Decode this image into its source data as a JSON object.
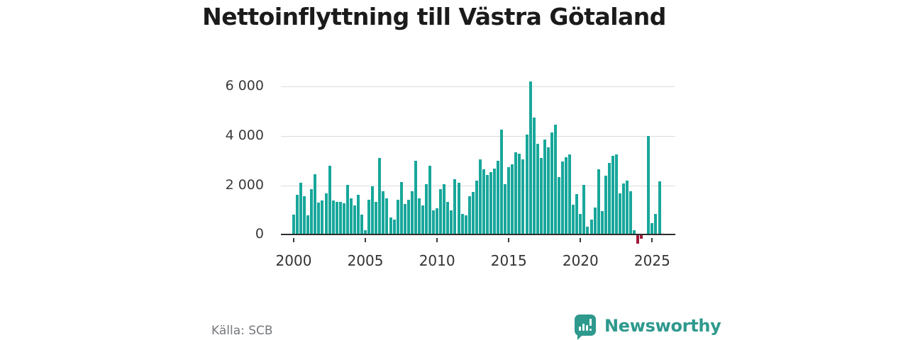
{
  "title": "Nettoinflyttning till Västra Götaland",
  "footer": {
    "source": "Källa: SCB",
    "brand_name": "Newsworthy"
  },
  "colors": {
    "bar_positive": "#18A79B",
    "bar_negative": "#9E1B38",
    "brand": "#2E998D",
    "grid": "#DCDCDC",
    "axis": "#2E2E2E",
    "title_text": "#1B1B1B",
    "tick_text": "#333333",
    "source_text": "#74777C"
  },
  "chart_data": {
    "type": "bar",
    "title": "Nettoinflyttning till Västra Götaland",
    "frequency": "quarterly",
    "x_start": "2000-Q1",
    "x_end": "2025-Q3",
    "x_tick_years": [
      2000,
      2005,
      2010,
      2015,
      2020,
      2025
    ],
    "x_tick_labels": [
      "2000",
      "2005",
      "2010",
      "2015",
      "2020",
      "2025"
    ],
    "y_ticks": [
      0,
      2000,
      4000,
      6000
    ],
    "y_tick_labels": [
      "0",
      "2 000",
      "4 000",
      "6 000"
    ],
    "ylim": [
      -500,
      6600
    ],
    "grid": true,
    "legend": false,
    "series": [
      {
        "name": "Nettoinflyttning",
        "values": [
          800,
          1600,
          2100,
          1560,
          780,
          1840,
          2450,
          1300,
          1390,
          1660,
          2790,
          1380,
          1320,
          1320,
          1280,
          2010,
          1470,
          1180,
          1610,
          800,
          170,
          1420,
          1950,
          1320,
          3120,
          1760,
          1470,
          700,
          600,
          1420,
          2140,
          1230,
          1400,
          1760,
          2980,
          1470,
          1180,
          2040,
          2790,
          990,
          1060,
          1850,
          2040,
          1320,
          990,
          2250,
          2090,
          840,
          780,
          1560,
          1740,
          2180,
          3040,
          2640,
          2430,
          2520,
          2670,
          3000,
          4250,
          2040,
          2720,
          2860,
          3340,
          3290,
          3050,
          4060,
          6215,
          4750,
          3680,
          3120,
          3845,
          3550,
          4150,
          4460,
          2330,
          2960,
          3150,
          3250,
          1200,
          1640,
          845,
          2015,
          315,
          605,
          1085,
          2640,
          940,
          2380,
          2905,
          3195,
          3240,
          1660,
          2060,
          2185,
          1755,
          170,
          -350,
          -130,
          0,
          4000,
          460,
          845,
          2160
        ]
      }
    ]
  }
}
